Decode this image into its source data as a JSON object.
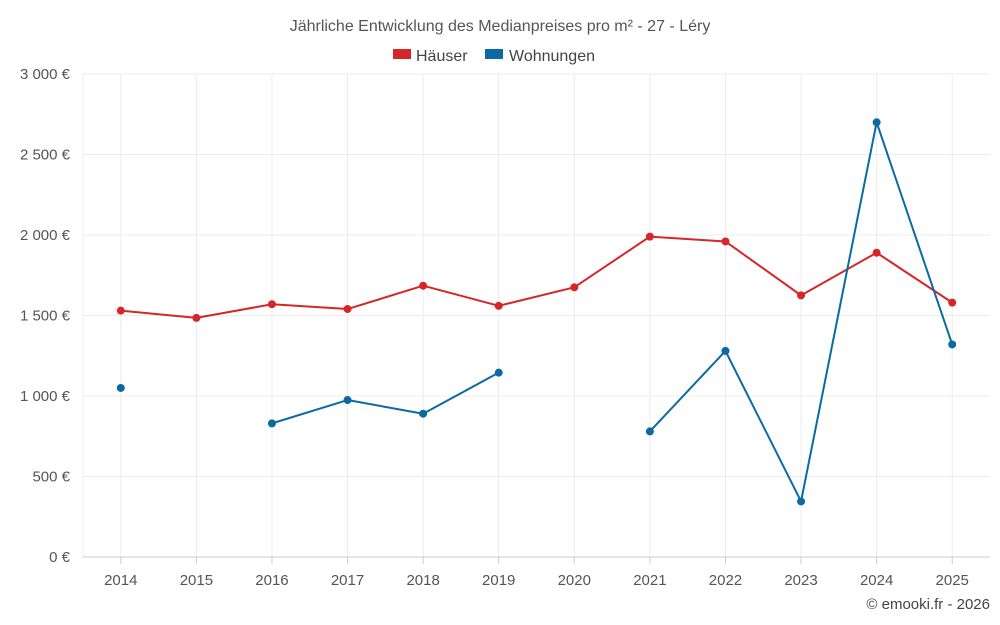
{
  "chart_data": {
    "type": "line",
    "title": "Jährliche Entwicklung des Medianpreises pro m² - 27 - Léry",
    "categories": [
      "2014",
      "2015",
      "2016",
      "2017",
      "2018",
      "2019",
      "2020",
      "2021",
      "2022",
      "2023",
      "2024",
      "2025"
    ],
    "ylim": [
      0,
      3000
    ],
    "yticks": [
      0,
      500,
      1000,
      1500,
      2000,
      2500,
      3000
    ],
    "ytick_labels": [
      "0 €",
      "500 €",
      "1 000 €",
      "1 500 €",
      "2 000 €",
      "2 500 €",
      "3 000 €"
    ],
    "grid": true,
    "legend_position": "top-center",
    "series": [
      {
        "name": "Häuser",
        "color": "#d62728",
        "values": [
          1530,
          1485,
          1570,
          1540,
          1685,
          1560,
          1675,
          1990,
          1960,
          1625,
          1890,
          1580
        ]
      },
      {
        "name": "Wohnungen",
        "color": "#0b6aa2",
        "values": [
          1050,
          null,
          830,
          975,
          890,
          1145,
          null,
          780,
          1280,
          345,
          2700,
          1320
        ]
      }
    ]
  },
  "credit": "© emooki.fr - 2026"
}
